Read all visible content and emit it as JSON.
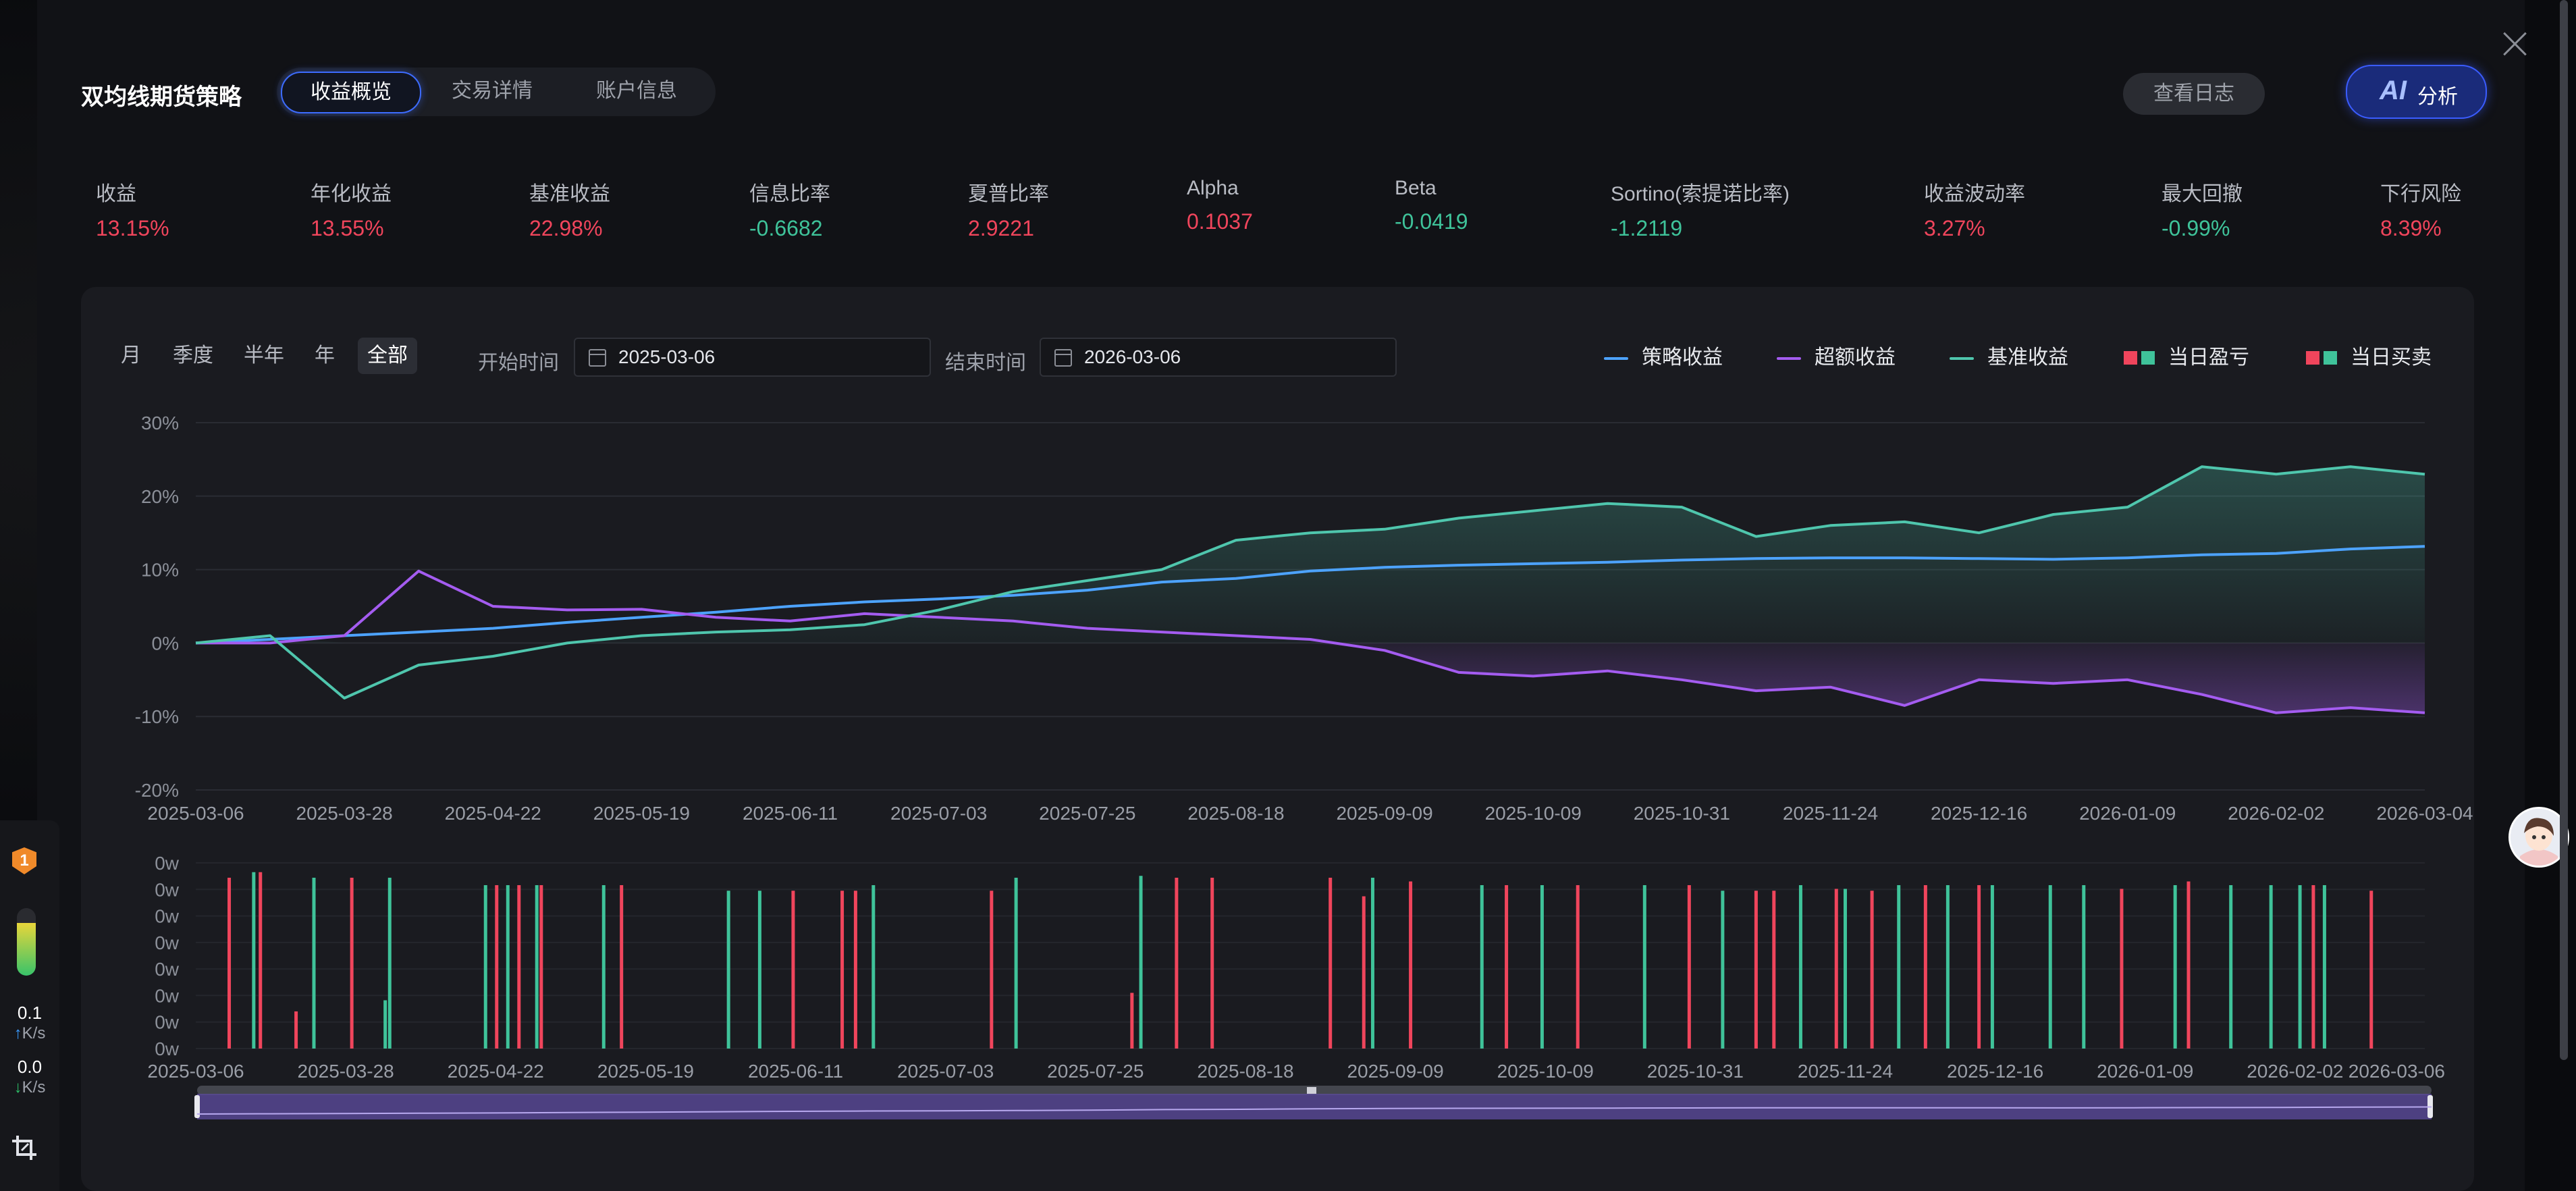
{
  "strategy_title": "双均线期货策略",
  "tabs": [
    {
      "label": "收益概览"
    },
    {
      "label": "交易详情"
    },
    {
      "label": "账户信息"
    }
  ],
  "log_button": "查看日志",
  "ai_button": {
    "icon_text": "AI",
    "label": "分析"
  },
  "metrics": [
    {
      "label": "收益",
      "value": "13.15%",
      "color": "red"
    },
    {
      "label": "年化收益",
      "value": "13.55%",
      "color": "red"
    },
    {
      "label": "基准收益",
      "value": "22.98%",
      "color": "red"
    },
    {
      "label": "信息比率",
      "value": "-0.6682",
      "color": "green"
    },
    {
      "label": "夏普比率",
      "value": "2.9221",
      "color": "red"
    },
    {
      "label": "Alpha",
      "value": "0.1037",
      "color": "red"
    },
    {
      "label": "Beta",
      "value": "-0.0419",
      "color": "green"
    },
    {
      "label": "Sortino(索提诺比率)",
      "value": "-1.2119",
      "color": "green"
    },
    {
      "label": "收益波动率",
      "value": "3.27%",
      "color": "red"
    },
    {
      "label": "最大回撤",
      "value": "-0.99%",
      "color": "green"
    },
    {
      "label": "下行风险",
      "value": "8.39%",
      "color": "red"
    }
  ],
  "periods": [
    "月",
    "季度",
    "半年",
    "年",
    "全部"
  ],
  "active_period": "全部",
  "date_range": {
    "start_label": "开始时间",
    "start": "2025-03-06",
    "end_label": "结束时间",
    "end": "2026-03-06"
  },
  "legend": [
    {
      "label": "策略收益",
      "kind": "line",
      "color": "#4da3ff"
    },
    {
      "label": "超额收益",
      "kind": "line",
      "color": "#a45cf0"
    },
    {
      "label": "基准收益",
      "kind": "line",
      "color": "#4fc6ad"
    },
    {
      "label": "当日盈亏",
      "kind": "squares",
      "colors": [
        "#f0455c",
        "#3fc39a"
      ]
    },
    {
      "label": "当日买卖",
      "kind": "squares",
      "colors": [
        "#f0455c",
        "#3fc39a"
      ]
    }
  ],
  "colors": {
    "strategy": "#4da3ff",
    "excess": "#a45cf0",
    "benchmark": "#4fc6ad",
    "up": "#f0455c",
    "down": "#3fc39a",
    "accent": "#3d6cff"
  },
  "chart_data": [
    {
      "type": "line",
      "x_ticks": [
        "2025-03-06",
        "2025-03-28",
        "2025-04-22",
        "2025-05-19",
        "2025-06-11",
        "2025-07-03",
        "2025-07-25",
        "2025-08-18",
        "2025-09-09",
        "2025-10-09",
        "2025-10-31",
        "2025-11-24",
        "2025-12-16",
        "2026-01-09",
        "2026-02-02",
        "2026-03-04"
      ],
      "y_ticks": [
        "30%",
        "20%",
        "10%",
        "0%",
        "-10%",
        "-20%"
      ],
      "ylim": [
        -20,
        30
      ],
      "grid": true,
      "series": [
        {
          "name": "策略收益",
          "values": [
            0,
            0.5,
            1,
            1.5,
            2,
            2.8,
            3.5,
            4.2,
            5,
            5.6,
            6,
            6.5,
            7.2,
            8.3,
            8.8,
            9.8,
            10.3,
            10.6,
            10.8,
            11,
            11.3,
            11.5,
            11.6,
            11.6,
            11.5,
            11.4,
            11.6,
            12,
            12.2,
            12.8,
            13.15
          ]
        },
        {
          "name": "超额收益",
          "values": [
            0,
            0,
            1,
            9.8,
            5,
            4.5,
            4.6,
            3.5,
            3,
            4,
            3.5,
            3,
            2,
            1.5,
            1,
            0.5,
            -1,
            -4,
            -4.5,
            -3.8,
            -5,
            -6.5,
            -6,
            -8.5,
            -5,
            -5.5,
            -5,
            -7,
            -9.5,
            -8.8,
            -9.5
          ]
        },
        {
          "name": "基准收益",
          "values": [
            0,
            1,
            -7.5,
            -3,
            -1.8,
            0,
            1,
            1.5,
            1.8,
            2.5,
            4.5,
            7,
            8.5,
            10,
            14,
            15,
            15.5,
            17,
            18,
            19,
            18.5,
            14.5,
            16,
            16.5,
            15,
            17.5,
            18.5,
            24,
            23,
            24,
            22.98
          ]
        }
      ]
    },
    {
      "type": "bar",
      "title": "",
      "y_ticks": [
        "0w",
        "0w",
        "0w",
        "0w",
        "0w",
        "0w",
        "0w",
        "0w"
      ],
      "x_ticks": [
        "2025-03-06",
        "2025-03-28",
        "2025-04-22",
        "2025-05-19",
        "2025-06-11",
        "2025-07-03",
        "2025-07-25",
        "2025-08-18",
        "2025-09-09",
        "2025-10-09",
        "2025-10-31",
        "2025-11-24",
        "2025-12-16",
        "2026-01-09",
        "2026-02-02",
        "2026-03-06"
      ],
      "ylim": [
        0,
        1
      ],
      "series": [
        {
          "name": "当日买卖",
          "bars": [
            [
              0.015,
              0.92,
              "up"
            ],
            [
              0.026,
              0.95,
              "down"
            ],
            [
              0.029,
              0.95,
              "up"
            ],
            [
              0.045,
              0.2,
              "up"
            ],
            [
              0.053,
              0.92,
              "down"
            ],
            [
              0.07,
              0.92,
              "up"
            ],
            [
              0.085,
              0.26,
              "down"
            ],
            [
              0.087,
              0.92,
              "down"
            ],
            [
              0.13,
              0.88,
              "down"
            ],
            [
              0.135,
              0.88,
              "up"
            ],
            [
              0.14,
              0.88,
              "down"
            ],
            [
              0.145,
              0.88,
              "up"
            ],
            [
              0.153,
              0.88,
              "down"
            ],
            [
              0.155,
              0.88,
              "up"
            ],
            [
              0.183,
              0.88,
              "down"
            ],
            [
              0.191,
              0.88,
              "up"
            ],
            [
              0.239,
              0.85,
              "down"
            ],
            [
              0.253,
              0.85,
              "down"
            ],
            [
              0.268,
              0.85,
              "up"
            ],
            [
              0.29,
              0.85,
              "up"
            ],
            [
              0.296,
              0.85,
              "up"
            ],
            [
              0.304,
              0.88,
              "down"
            ],
            [
              0.357,
              0.85,
              "up"
            ],
            [
              0.368,
              0.92,
              "down"
            ],
            [
              0.42,
              0.3,
              "up"
            ],
            [
              0.424,
              0.93,
              "down"
            ],
            [
              0.44,
              0.92,
              "up"
            ],
            [
              0.456,
              0.92,
              "up"
            ],
            [
              0.509,
              0.92,
              "up"
            ],
            [
              0.524,
              0.82,
              "up"
            ],
            [
              0.528,
              0.92,
              "down"
            ],
            [
              0.545,
              0.9,
              "up"
            ],
            [
              0.577,
              0.88,
              "down"
            ],
            [
              0.588,
              0.88,
              "up"
            ],
            [
              0.604,
              0.88,
              "down"
            ],
            [
              0.62,
              0.88,
              "up"
            ],
            [
              0.65,
              0.88,
              "down"
            ],
            [
              0.67,
              0.88,
              "up"
            ],
            [
              0.685,
              0.85,
              "down"
            ],
            [
              0.7,
              0.85,
              "up"
            ],
            [
              0.708,
              0.85,
              "up"
            ],
            [
              0.72,
              0.88,
              "down"
            ],
            [
              0.736,
              0.86,
              "up"
            ],
            [
              0.74,
              0.86,
              "down"
            ],
            [
              0.752,
              0.85,
              "up"
            ],
            [
              0.764,
              0.88,
              "down"
            ],
            [
              0.776,
              0.88,
              "up"
            ],
            [
              0.786,
              0.88,
              "down"
            ],
            [
              0.8,
              0.88,
              "up"
            ],
            [
              0.806,
              0.88,
              "down"
            ],
            [
              0.832,
              0.88,
              "down"
            ],
            [
              0.847,
              0.88,
              "down"
            ],
            [
              0.864,
              0.86,
              "up"
            ],
            [
              0.888,
              0.88,
              "down"
            ],
            [
              0.894,
              0.9,
              "up"
            ],
            [
              0.913,
              0.88,
              "down"
            ],
            [
              0.931,
              0.88,
              "down"
            ],
            [
              0.944,
              0.88,
              "down"
            ],
            [
              0.95,
              0.88,
              "up"
            ],
            [
              0.955,
              0.88,
              "down"
            ],
            [
              0.976,
              0.85,
              "up"
            ]
          ]
        }
      ]
    }
  ],
  "side_widget": {
    "badge": "1",
    "upload_speed": "0.1",
    "upload_unit": "K/s",
    "download_speed": "0.0",
    "download_unit": "K/s",
    "level": 0.78
  },
  "icons": [
    "close-icon",
    "calendar-icon",
    "crop-icon",
    "avatar",
    "shield-badge-icon"
  ]
}
